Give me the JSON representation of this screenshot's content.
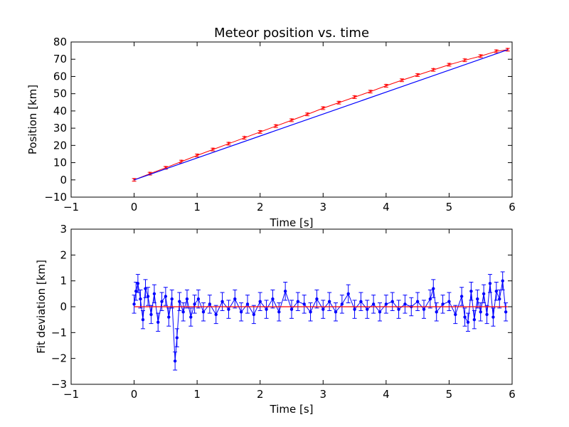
{
  "chart_data": [
    {
      "type": "line",
      "title": "Meteor position vs. time",
      "xlabel": "Time [s]",
      "ylabel": "Position [km]",
      "xlim": [
        -1,
        6
      ],
      "ylim": [
        -10,
        80
      ],
      "xticks": [
        "−1",
        "0",
        "1",
        "2",
        "3",
        "4",
        "5",
        "6"
      ],
      "yticks": [
        "−10",
        "0",
        "10",
        "20",
        "30",
        "40",
        "50",
        "60",
        "70",
        "80"
      ],
      "grid": false,
      "legend": "none",
      "series": [
        {
          "style": "points-with-errorbars",
          "color": "#ff0000",
          "marker": "star",
          "x": [
            0.0,
            0.25,
            0.5,
            0.75,
            1.0,
            1.25,
            1.5,
            1.75,
            2.0,
            2.25,
            2.5,
            2.75,
            3.0,
            3.25,
            3.5,
            3.75,
            4.0,
            4.25,
            4.5,
            4.75,
            5.0,
            5.25,
            5.5,
            5.75,
            5.93
          ],
          "y": [
            0.0,
            3.6,
            7.0,
            10.6,
            14.2,
            17.6,
            21.0,
            24.4,
            27.8,
            31.2,
            34.6,
            38.0,
            41.6,
            44.8,
            48.0,
            51.2,
            54.6,
            57.8,
            60.8,
            63.8,
            66.8,
            69.4,
            71.8,
            74.6,
            75.5
          ],
          "yerr_km": 0.8
        },
        {
          "style": "fit-line",
          "color": "#0000ff",
          "x": [
            0.0,
            5.93
          ],
          "y": [
            0.0,
            75.5
          ]
        }
      ]
    },
    {
      "type": "line",
      "title": "",
      "xlabel": "Time [s]",
      "ylabel": "Fit deviation [km]",
      "xlim": [
        -1,
        6
      ],
      "ylim": [
        -3,
        3
      ],
      "xticks": [
        "−1",
        "0",
        "1",
        "2",
        "3",
        "4",
        "5",
        "6"
      ],
      "yticks": [
        "−3",
        "−2",
        "−1",
        "0",
        "1",
        "2",
        "3"
      ],
      "grid": false,
      "legend": "none",
      "series": [
        {
          "style": "points-with-errorbars",
          "color": "#0000ff",
          "marker": "dot",
          "x": [
            0.0,
            0.03,
            0.06,
            0.1,
            0.14,
            0.18,
            0.22,
            0.27,
            0.32,
            0.38,
            0.44,
            0.5,
            0.55,
            0.6,
            0.65,
            0.68,
            0.72,
            0.78,
            0.84,
            0.9,
            0.96,
            1.02,
            1.1,
            1.2,
            1.3,
            1.4,
            1.5,
            1.6,
            1.7,
            1.8,
            1.9,
            2.0,
            2.1,
            2.2,
            2.3,
            2.4,
            2.5,
            2.6,
            2.7,
            2.8,
            2.9,
            3.0,
            3.1,
            3.2,
            3.3,
            3.4,
            3.5,
            3.6,
            3.7,
            3.8,
            3.9,
            4.0,
            4.1,
            4.2,
            4.3,
            4.4,
            4.5,
            4.6,
            4.7,
            4.75,
            4.8,
            4.9,
            5.0,
            5.1,
            5.2,
            5.25,
            5.3,
            5.35,
            5.4,
            5.45,
            5.5,
            5.55,
            5.6,
            5.65,
            5.7,
            5.75,
            5.8,
            5.85,
            5.9
          ],
          "y": [
            0.1,
            0.6,
            0.9,
            0.3,
            -0.5,
            0.7,
            0.4,
            -0.3,
            0.5,
            -0.6,
            0.2,
            0.4,
            -0.4,
            0.3,
            -2.1,
            -1.2,
            0.2,
            -0.2,
            0.3,
            -0.4,
            0.1,
            0.3,
            -0.2,
            0.1,
            -0.3,
            0.2,
            -0.1,
            0.3,
            -0.2,
            0.1,
            -0.3,
            0.2,
            -0.1,
            0.3,
            -0.2,
            0.6,
            -0.1,
            0.2,
            0.1,
            -0.2,
            0.3,
            -0.1,
            0.2,
            -0.2,
            0.1,
            0.5,
            -0.1,
            0.2,
            -0.1,
            0.1,
            -0.2,
            0.1,
            0.2,
            -0.1,
            0.1,
            0.0,
            0.2,
            -0.1,
            0.3,
            0.7,
            -0.2,
            0.1,
            0.2,
            -0.3,
            0.4,
            -0.4,
            -0.6,
            0.6,
            -0.5,
            0.3,
            -0.2,
            0.5,
            -0.3,
            0.9,
            -0.4,
            0.6,
            0.3,
            1.0,
            -0.2
          ],
          "yerr_km": 0.35
        },
        {
          "style": "reference-line",
          "color": "#ff0000",
          "x": [
            0.0,
            5.93
          ],
          "y": [
            0.0,
            0.0
          ]
        }
      ]
    }
  ]
}
